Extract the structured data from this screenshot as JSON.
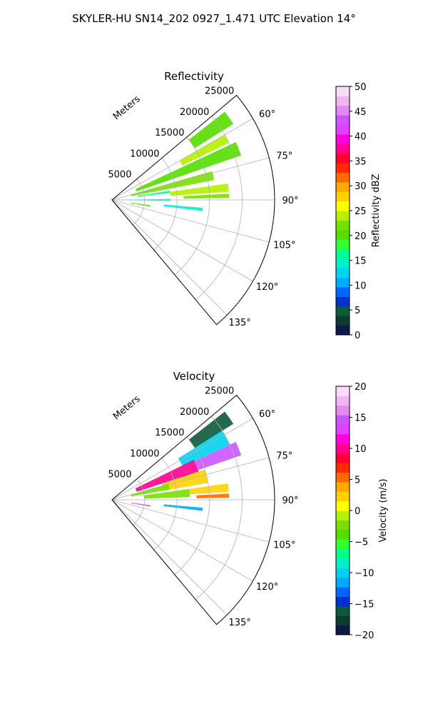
{
  "figure": {
    "suptitle": "SKYLER-HU  SN14_202  0927_1.471 UTC Elevation 14°"
  },
  "chart_data": [
    {
      "type": "polar-sector",
      "title": "Reflectivity",
      "radial_label": "Meters",
      "r_ticks": [
        5000,
        10000,
        15000,
        20000,
        25000
      ],
      "r_tick_labels": [
        "5000",
        "10000",
        "15000",
        "20000",
        "25000"
      ],
      "rlim": [
        0,
        25000
      ],
      "theta_ticks": [
        60,
        75,
        90,
        105,
        120,
        135
      ],
      "theta_tick_labels": [
        "60°",
        "75°",
        "90°",
        "105°",
        "120°",
        "135°"
      ],
      "theta_range": [
        50,
        140
      ],
      "grid": true,
      "colorbar": {
        "label": "Reflectivity dBZ",
        "range": [
          0,
          50
        ],
        "ticks": [
          0,
          5,
          10,
          15,
          20,
          25,
          30,
          35,
          40,
          45,
          50
        ],
        "tick_labels": [
          "0",
          "5",
          "10",
          "15",
          "20",
          "25",
          "30",
          "35",
          "40",
          "45",
          "50"
        ],
        "colors": [
          "#0a1a4a",
          "#0f3a30",
          "#0d5a3c",
          "#0033cc",
          "#0066ff",
          "#00aaff",
          "#00d2f0",
          "#00f0c8",
          "#00ff90",
          "#33ff33",
          "#55dd00",
          "#77e000",
          "#b5f000",
          "#ffff00",
          "#ffd200",
          "#ffaa00",
          "#ff6a00",
          "#ff2a00",
          "#ff0030",
          "#ff0090",
          "#ff00dd",
          "#e040ff",
          "#cc55ff",
          "#e38aee",
          "#f0b6f0",
          "#fadcfa"
        ]
      },
      "echo_regions": [
        {
          "az": [
            52,
            58
          ],
          "r": [
            15000,
            22000
          ],
          "value": 20
        },
        {
          "az": [
            60,
            64
          ],
          "r": [
            12000,
            20000
          ],
          "value": 24
        },
        {
          "az": [
            65,
            71
          ],
          "r": [
            4000,
            21000
          ],
          "value": 20
        },
        {
          "az": [
            74,
            79
          ],
          "r": [
            3000,
            16000
          ],
          "value": 22
        },
        {
          "az": [
            82,
            86
          ],
          "r": [
            9000,
            18000
          ],
          "value": 24
        },
        {
          "az": [
            81,
            83
          ],
          "r": [
            4000,
            9000
          ],
          "value": 17
        },
        {
          "az": [
            87,
            89
          ],
          "r": [
            11000,
            18000
          ],
          "value": 22
        },
        {
          "az": [
            89,
            91
          ],
          "r": [
            1000,
            9000
          ],
          "value": 15
        },
        {
          "az": [
            98,
            100
          ],
          "r": [
            3000,
            6000
          ],
          "value": 20
        },
        {
          "az": [
            95,
            97
          ],
          "r": [
            8000,
            14000
          ],
          "value": 15
        }
      ]
    },
    {
      "type": "polar-sector",
      "title": "Velocity",
      "radial_label": "Meters",
      "r_ticks": [
        5000,
        10000,
        15000,
        20000,
        25000
      ],
      "r_tick_labels": [
        "5000",
        "10000",
        "15000",
        "20000",
        "25000"
      ],
      "rlim": [
        0,
        25000
      ],
      "theta_ticks": [
        60,
        75,
        90,
        105,
        120,
        135
      ],
      "theta_tick_labels": [
        "60°",
        "75°",
        "90°",
        "105°",
        "120°",
        "135°"
      ],
      "theta_range": [
        50,
        140
      ],
      "grid": true,
      "colorbar": {
        "label": "Velocity (m/s)",
        "range": [
          -20,
          20
        ],
        "ticks": [
          -20,
          -15,
          -10,
          -5,
          0,
          5,
          10,
          15,
          20
        ],
        "tick_labels": [
          "−20",
          "−15",
          "−10",
          "−5",
          "0",
          "5",
          "10",
          "15",
          "20"
        ],
        "colors": [
          "#0a1a4a",
          "#0f3a30",
          "#0d5a3c",
          "#0033cc",
          "#0066ff",
          "#00aaff",
          "#00d2f0",
          "#00f0c8",
          "#00ff90",
          "#33ff33",
          "#55dd00",
          "#77e000",
          "#b5f000",
          "#ffff00",
          "#ffd200",
          "#ffaa00",
          "#ff6a00",
          "#ff2a00",
          "#ff0030",
          "#ff0090",
          "#ff00dd",
          "#e040ff",
          "#cc55ff",
          "#e38aee",
          "#f0b6f0",
          "#fadcfa"
        ]
      },
      "echo_regions": [
        {
          "az": [
            52,
            58
          ],
          "r": [
            15000,
            22000
          ],
          "value": -16
        },
        {
          "az": [
            58,
            65
          ],
          "r": [
            12000,
            20000
          ],
          "value": -10
        },
        {
          "az": [
            64,
            72
          ],
          "r": [
            4000,
            14000
          ],
          "value": 10
        },
        {
          "az": [
            65,
            71
          ],
          "r": [
            14000,
            21000
          ],
          "value": 14
        },
        {
          "az": [
            72,
            80
          ],
          "r": [
            8000,
            15000
          ],
          "value": 3
        },
        {
          "az": [
            74,
            80
          ],
          "r": [
            3000,
            9000
          ],
          "value": -3
        },
        {
          "az": [
            82,
            88
          ],
          "r": [
            5000,
            12000
          ],
          "value": -2
        },
        {
          "az": [
            82,
            86
          ],
          "r": [
            12000,
            18000
          ],
          "value": 3
        },
        {
          "az": [
            87,
            89
          ],
          "r": [
            13000,
            18000
          ],
          "value": 6
        },
        {
          "az": [
            98,
            100
          ],
          "r": [
            3000,
            6000
          ],
          "value": 15
        },
        {
          "az": [
            95,
            97
          ],
          "r": [
            8000,
            14000
          ],
          "value": -12
        }
      ]
    }
  ]
}
